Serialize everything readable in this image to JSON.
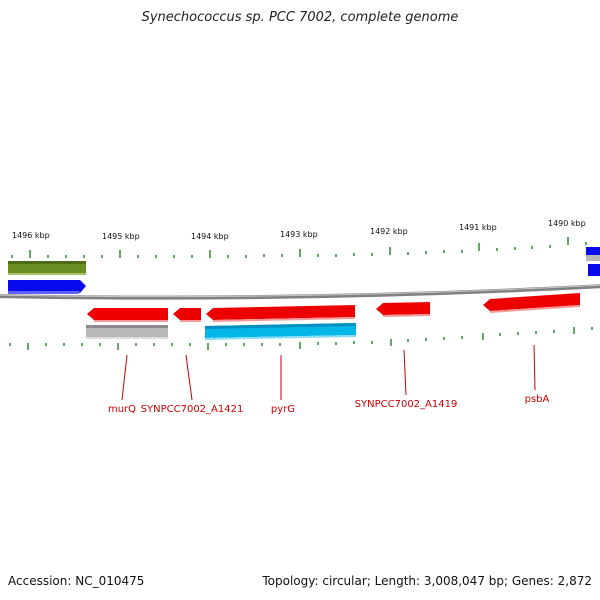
{
  "title": "Synechococcus sp. PCC 7002, complete genome",
  "accession": "Accession: NC_010475",
  "summary": "Topology: circular; Length: 3,008,047 bp; Genes: 2,872",
  "colors": {
    "backbone": "#808080",
    "tick": "#2e8b2e",
    "gene_red": "#ee0000",
    "gene_gray": "#b8b8b8",
    "gene_cyan": "#00b7e8",
    "gene_blue": "#0a0aee",
    "gene_olive": "#6b8e23",
    "label": "#cc0000"
  },
  "kbp_markers": [
    "1496 kbp",
    "1495 kbp",
    "1494 kbp",
    "1493 kbp",
    "1492 kbp",
    "1491 kbp",
    "1490 kbp"
  ],
  "gene_labels": [
    "murQ",
    "SYNPCC7002_A1421",
    "pyrG",
    "SYNPCC7002_A1419",
    "psbA"
  ]
}
